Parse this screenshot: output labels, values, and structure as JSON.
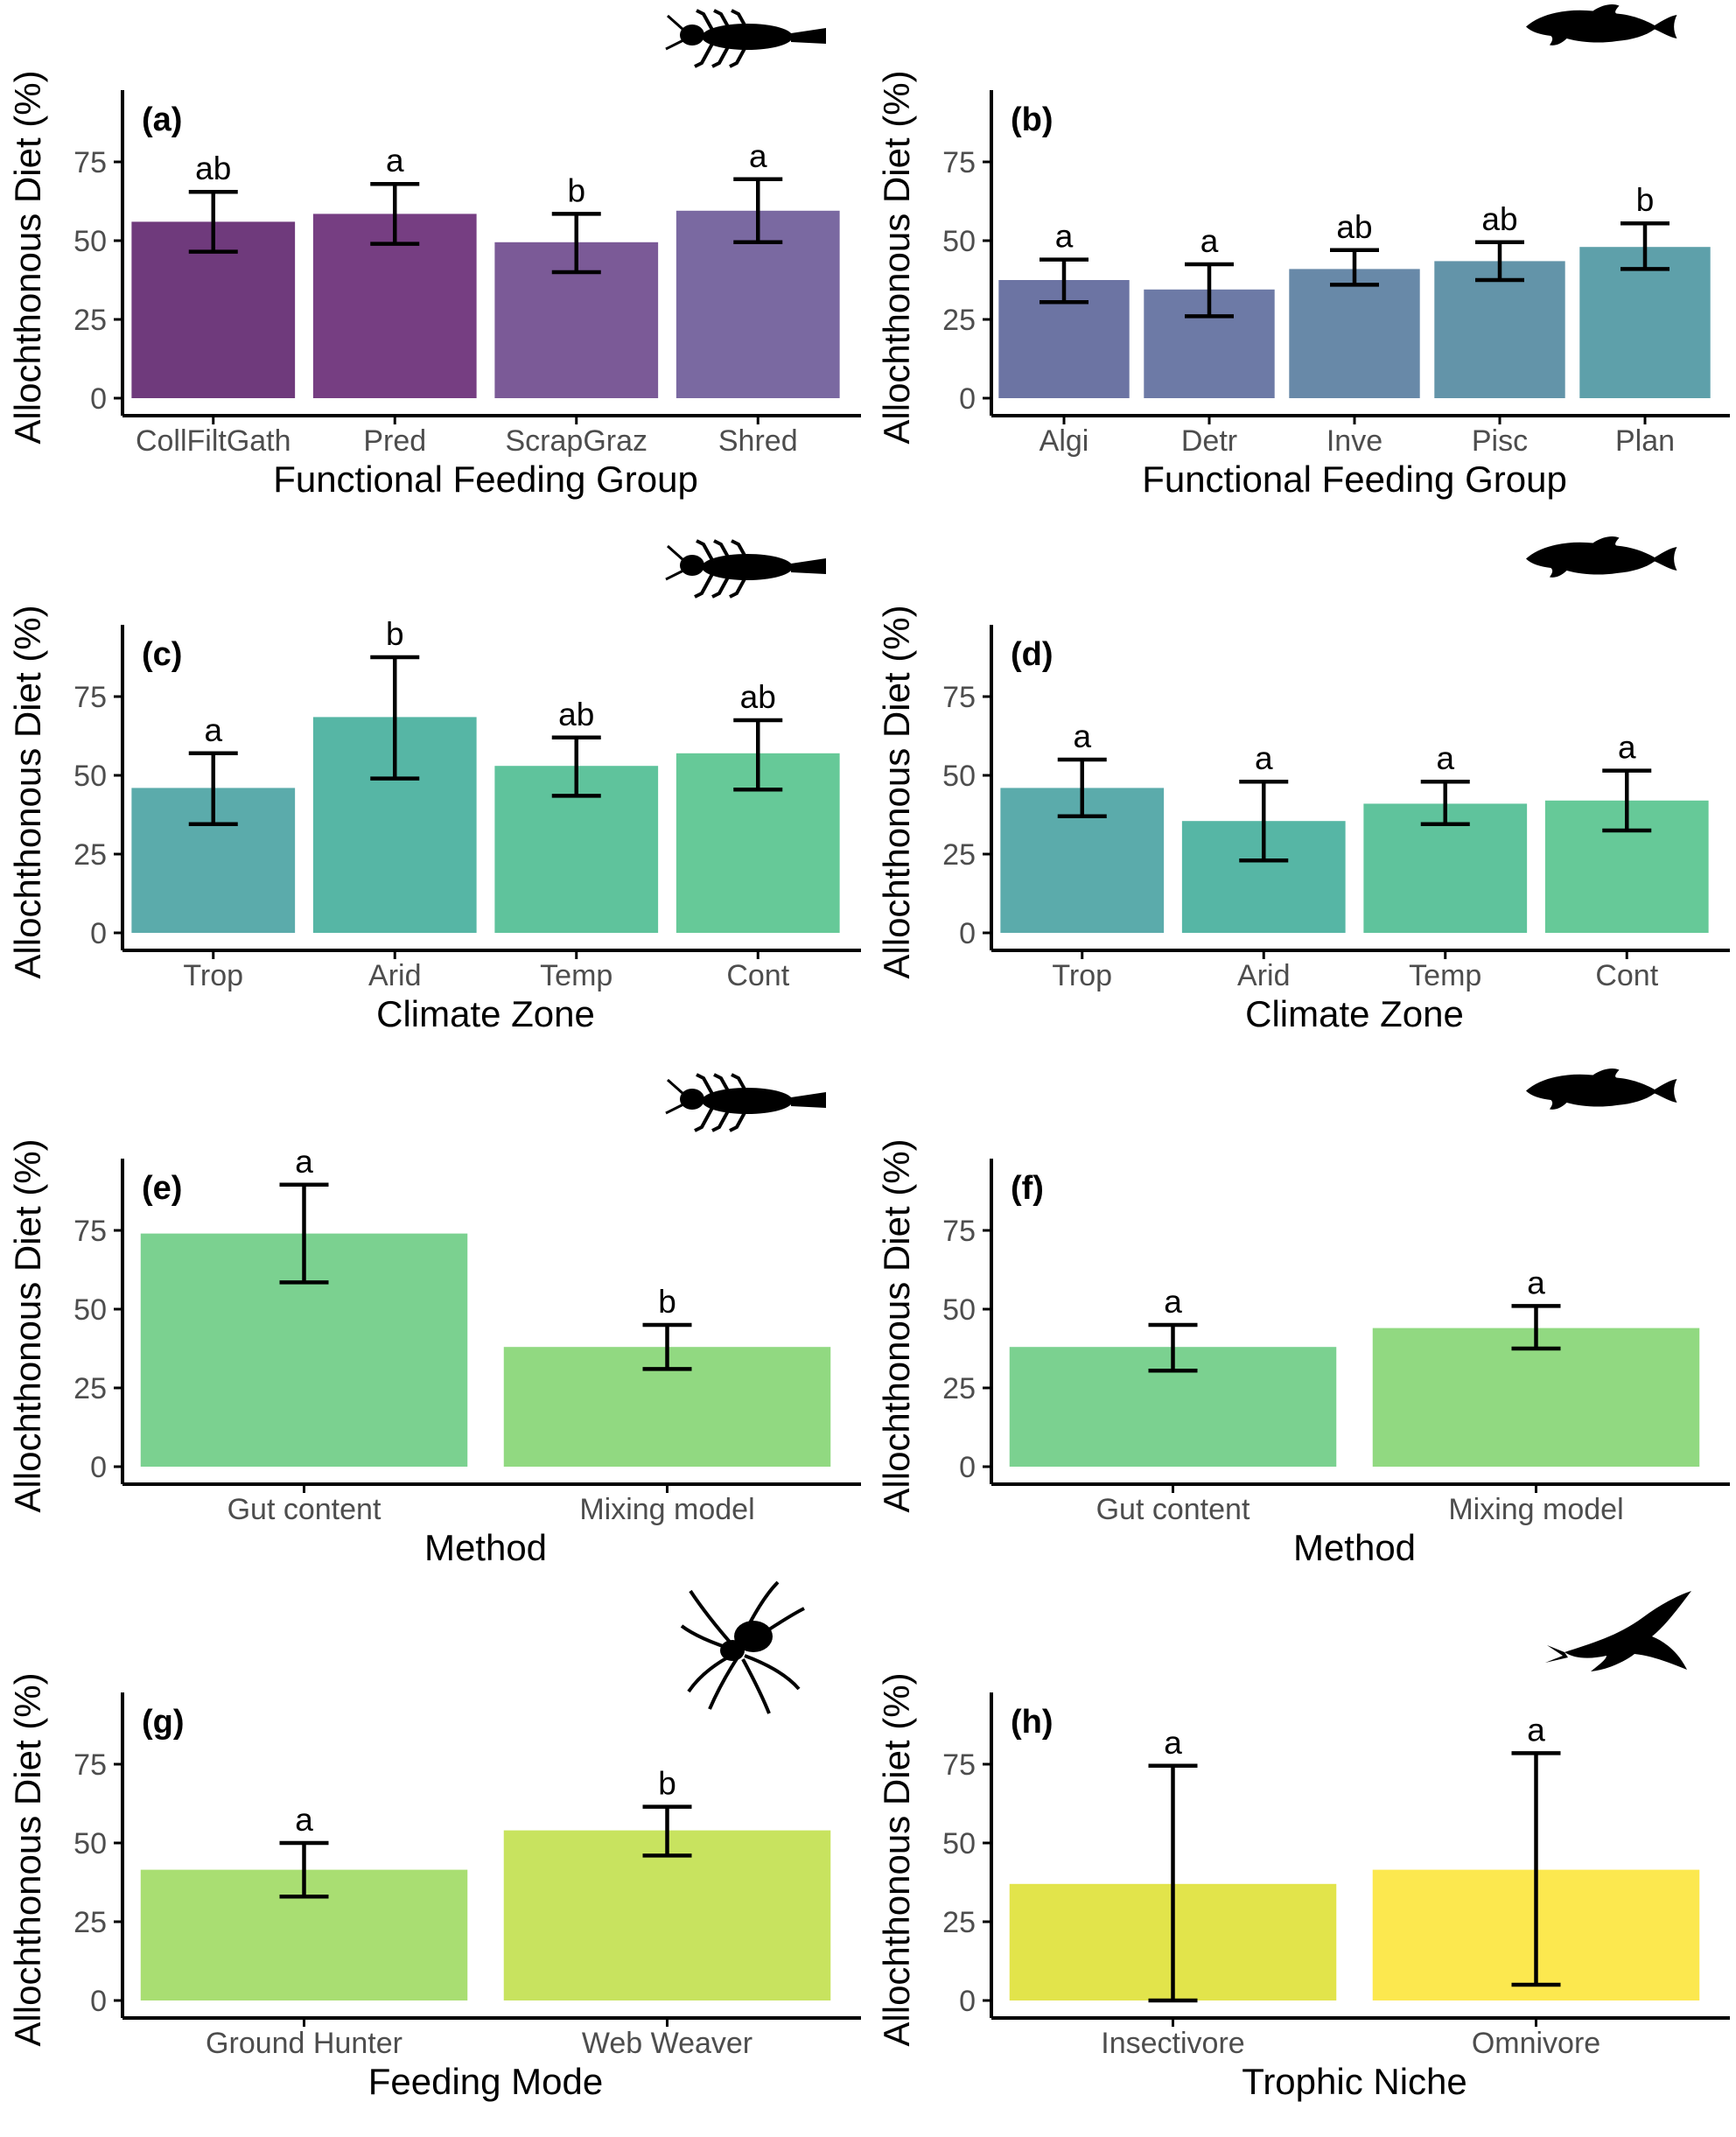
{
  "figure": {
    "y_axis_label": "Allochthonous Diet (%)",
    "colors": {
      "axis": "#000000",
      "tick_text": "#4d4d4d",
      "errorbar": "#000000",
      "icon": "#000000"
    }
  },
  "chart_data": [
    {
      "panel": "(a)",
      "type": "bar",
      "icon": "insect-larva-icon",
      "xlabel": "Functional Feeding Group",
      "ylabel": "Allochthonous Diet (%)",
      "ylim": [
        0,
        95
      ],
      "yticks": [
        0,
        25,
        50,
        75
      ],
      "grid": false,
      "legend": "none",
      "categories": [
        "CollFiltGath",
        "Pred",
        "ScrapGraz",
        "Shred"
      ],
      "values": [
        56,
        58.5,
        49.5,
        59.5
      ],
      "err_low": [
        46.5,
        49,
        40,
        49.5
      ],
      "err_high": [
        65.5,
        68,
        58.5,
        69.5
      ],
      "letters": [
        "ab",
        "a",
        "b",
        "a"
      ],
      "colors": [
        "#6f3a7c",
        "#763e82",
        "#7b5a97",
        "#7a69a1"
      ]
    },
    {
      "panel": "(b)",
      "type": "bar",
      "icon": "fish-icon",
      "xlabel": "Functional Feeding Group",
      "ylabel": "Allochthonous Diet (%)",
      "ylim": [
        0,
        95
      ],
      "yticks": [
        0,
        25,
        50,
        75
      ],
      "grid": false,
      "legend": "none",
      "categories": [
        "Algi",
        "Detr",
        "Inve",
        "Pisc",
        "Plan"
      ],
      "values": [
        37.5,
        34.5,
        41,
        43.5,
        48
      ],
      "err_low": [
        30.5,
        26,
        36,
        37.5,
        41
      ],
      "err_high": [
        44,
        42.5,
        47,
        49.5,
        55.5
      ],
      "letters": [
        "a",
        "a",
        "ab",
        "ab",
        "b"
      ],
      "colors": [
        "#6c74a3",
        "#6d7aa6",
        "#6889a8",
        "#6394a9",
        "#5ea0aa"
      ]
    },
    {
      "panel": "(c)",
      "type": "bar",
      "icon": "insect-larva-icon",
      "xlabel": "Climate Zone",
      "ylabel": "Allochthonous Diet (%)",
      "ylim": [
        0,
        95
      ],
      "yticks": [
        0,
        25,
        50,
        75
      ],
      "grid": false,
      "legend": "none",
      "categories": [
        "Trop",
        "Arid",
        "Temp",
        "Cont"
      ],
      "values": [
        46,
        68.5,
        53,
        57
      ],
      "err_low": [
        34.5,
        49,
        43.5,
        45.5
      ],
      "err_high": [
        57,
        87.5,
        62,
        67.5
      ],
      "letters": [
        "a",
        "b",
        "ab",
        "ab"
      ],
      "colors": [
        "#5babab",
        "#56b6a5",
        "#5fc39c",
        "#66c998"
      ]
    },
    {
      "panel": "(d)",
      "type": "bar",
      "icon": "fish-icon",
      "xlabel": "Climate Zone",
      "ylabel": "Allochthonous Diet (%)",
      "ylim": [
        0,
        95
      ],
      "yticks": [
        0,
        25,
        50,
        75
      ],
      "grid": false,
      "legend": "none",
      "categories": [
        "Trop",
        "Arid",
        "Temp",
        "Cont"
      ],
      "values": [
        46,
        35.5,
        41,
        42
      ],
      "err_low": [
        37,
        23,
        34.5,
        32.5
      ],
      "err_high": [
        55,
        48,
        48,
        51.5
      ],
      "letters": [
        "a",
        "a",
        "a",
        "a"
      ],
      "colors": [
        "#5babab",
        "#56b6a5",
        "#5fc39c",
        "#66c998"
      ]
    },
    {
      "panel": "(e)",
      "type": "bar",
      "icon": "insect-larva-icon",
      "xlabel": "Method",
      "ylabel": "Allochthonous Diet (%)",
      "ylim": [
        0,
        95
      ],
      "yticks": [
        0,
        25,
        50,
        75
      ],
      "grid": false,
      "legend": "none",
      "categories": [
        "Gut content",
        "Mixing model"
      ],
      "values": [
        74,
        38
      ],
      "err_low": [
        58.5,
        31
      ],
      "err_high": [
        89.5,
        45
      ],
      "letters": [
        "a",
        "b"
      ],
      "colors": [
        "#7bd190",
        "#91d981"
      ]
    },
    {
      "panel": "(f)",
      "type": "bar",
      "icon": "fish-icon",
      "xlabel": "Method",
      "ylabel": "Allochthonous Diet (%)",
      "ylim": [
        0,
        95
      ],
      "yticks": [
        0,
        25,
        50,
        75
      ],
      "grid": false,
      "legend": "none",
      "categories": [
        "Gut content",
        "Mixing model"
      ],
      "values": [
        38,
        44
      ],
      "err_low": [
        30.5,
        37.5
      ],
      "err_high": [
        45,
        51
      ],
      "letters": [
        "a",
        "a"
      ],
      "colors": [
        "#7bd190",
        "#91d981"
      ]
    },
    {
      "panel": "(g)",
      "type": "bar",
      "icon": "spider-icon",
      "xlabel": "Feeding Mode",
      "ylabel": "Allochthonous Diet (%)",
      "ylim": [
        0,
        95
      ],
      "yticks": [
        0,
        25,
        50,
        75
      ],
      "grid": false,
      "legend": "none",
      "categories": [
        "Ground Hunter",
        "Web Weaver"
      ],
      "values": [
        41.5,
        54
      ],
      "err_low": [
        33,
        46
      ],
      "err_high": [
        50,
        61.5
      ],
      "letters": [
        "a",
        "b"
      ],
      "colors": [
        "#a9de72",
        "#c8e35f"
      ]
    },
    {
      "panel": "(h)",
      "type": "bar",
      "icon": "swallow-icon",
      "xlabel": "Trophic Niche",
      "ylabel": "Allochthonous Diet (%)",
      "ylim": [
        0,
        95
      ],
      "yticks": [
        0,
        25,
        50,
        75
      ],
      "grid": false,
      "legend": "none",
      "categories": [
        "Insectivore",
        "Omnivore"
      ],
      "values": [
        37,
        41.5
      ],
      "err_low": [
        0,
        5
      ],
      "err_high": [
        74.5,
        78.5
      ],
      "letters": [
        "a",
        "a"
      ],
      "colors": [
        "#e2e44b",
        "#fce84f"
      ]
    }
  ]
}
